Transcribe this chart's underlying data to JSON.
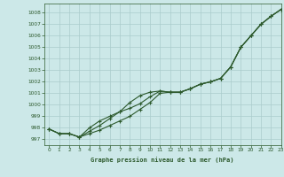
{
  "title": "Graphe pression niveau de la mer (hPa)",
  "bg_color": "#cce8e8",
  "grid_color": "#aacccc",
  "line_color": "#2d5a2d",
  "xlim": [
    -0.5,
    23
  ],
  "ylim": [
    996.5,
    1008.8
  ],
  "xticks": [
    0,
    1,
    2,
    3,
    4,
    5,
    6,
    7,
    8,
    9,
    10,
    11,
    12,
    13,
    14,
    15,
    16,
    17,
    18,
    19,
    20,
    21,
    22,
    23
  ],
  "yticks": [
    997,
    998,
    999,
    1000,
    1001,
    1002,
    1003,
    1004,
    1005,
    1006,
    1007,
    1008
  ],
  "series1": [
    997.9,
    997.5,
    997.5,
    997.2,
    997.5,
    997.8,
    998.2,
    998.6,
    999.0,
    999.6,
    1000.2,
    1001.0,
    1001.1,
    1001.1,
    1001.4,
    1001.8,
    1002.0,
    1002.3,
    1003.3,
    1005.0,
    1006.0,
    1007.0,
    1007.7,
    1008.3
  ],
  "series2": [
    997.9,
    997.5,
    997.5,
    997.2,
    998.0,
    998.6,
    999.0,
    999.4,
    999.7,
    1000.1,
    1000.7,
    1001.2,
    1001.1,
    1001.1,
    1001.4,
    1001.8,
    1002.0,
    1002.3,
    1003.3,
    1005.0,
    1006.0,
    1007.0,
    1007.7,
    1008.3
  ],
  "series3": [
    997.9,
    997.5,
    997.5,
    997.2,
    997.7,
    998.2,
    998.8,
    999.4,
    1000.2,
    1000.8,
    1001.1,
    1001.2,
    1001.1,
    1001.1,
    1001.4,
    1001.8,
    1002.0,
    1002.3,
    1003.3,
    1005.0,
    1006.0,
    1007.0,
    1007.7,
    1008.3
  ]
}
